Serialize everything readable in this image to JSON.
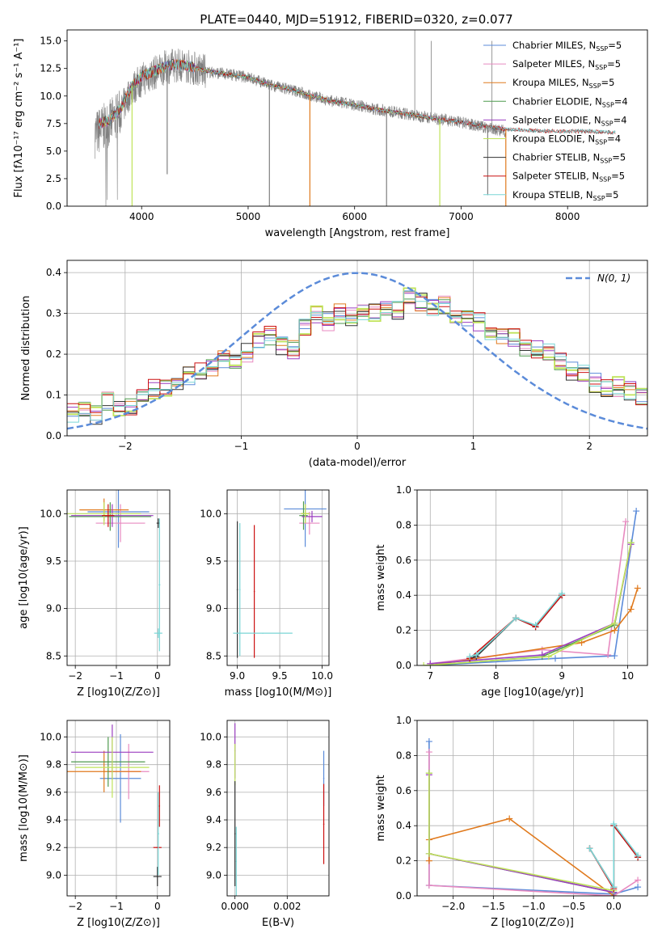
{
  "figure_title": "PLATE=0440, MJD=51912, FIBERID=0320, z=0.077",
  "colors": {
    "Chabrier MILES": "#5b8bd9",
    "Salpeter MILES": "#e88ac0",
    "Kroupa MILES": "#e07a1e",
    "Chabrier ELODIE": "#4f9a4f",
    "Salpeter ELODIE": "#9b3fc0",
    "Kroupa ELODIE": "#bfe35a",
    "Chabrier STELIB": "#333333",
    "Salpeter STELIB": "#cc1010",
    "Kroupa STELIB": "#7ad6d6",
    "data": "#808080",
    "normal": "#5b8bd9"
  },
  "chart_data": [
    {
      "id": "spectrum",
      "type": "line",
      "xlabel": "wavelength [Angstrom, rest frame]",
      "ylabel": "Flux [fλ10⁻¹⁷ erg cm⁻² s⁻¹ A⁻¹]",
      "xlim": [
        3300,
        8750
      ],
      "ylim": [
        0,
        16
      ],
      "xticks": [
        4000,
        5000,
        6000,
        7000,
        8000
      ],
      "yticks": [
        0.0,
        2.5,
        5.0,
        7.5,
        10.0,
        12.5,
        15.0
      ],
      "grid": false,
      "legend_position": "top-right",
      "legend": [
        {
          "name": "Chabrier MILES",
          "label": "Chabrier MILES, N",
          "sub": "SSP",
          "tail": "=5"
        },
        {
          "name": "Salpeter MILES",
          "label": "Salpeter MILES, N",
          "sub": "SSP",
          "tail": "=5"
        },
        {
          "name": "Kroupa MILES",
          "label": "Kroupa MILES, N",
          "sub": "SSP",
          "tail": "=5"
        },
        {
          "name": "Chabrier ELODIE",
          "label": "Chabrier ELODIE, N",
          "sub": "SSP",
          "tail": "=4"
        },
        {
          "name": "Salpeter ELODIE",
          "label": "Salpeter ELODIE, N",
          "sub": "SSP",
          "tail": "=4"
        },
        {
          "name": "Kroupa ELODIE",
          "label": "Kroupa ELODIE, N",
          "sub": "SSP",
          "tail": "=4"
        },
        {
          "name": "Chabrier STELIB",
          "label": "Chabrier STELIB, N",
          "sub": "SSP",
          "tail": "=5"
        },
        {
          "name": "Salpeter STELIB",
          "label": "Salpeter STELIB, N",
          "sub": "SSP",
          "tail": "=5"
        },
        {
          "name": "Kroupa STELIB",
          "label": "Kroupa STELIB, N",
          "sub": "SSP",
          "tail": "=5"
        }
      ],
      "data_envelope": {
        "x": [
          3560,
          3620,
          3700,
          3800,
          3900,
          4000,
          4100,
          4200,
          4300,
          4400,
          4500,
          4600,
          4800,
          5000,
          5200,
          5400,
          5600,
          5800,
          6000,
          6200,
          6400,
          6600,
          6800,
          7000,
          7200,
          7420
        ],
        "y": [
          6.5,
          7.0,
          7.5,
          8.5,
          10.5,
          11.5,
          12.0,
          12.5,
          12.8,
          12.8,
          12.5,
          12.2,
          12.0,
          11.7,
          11.0,
          10.6,
          10.0,
          9.5,
          9.2,
          8.8,
          8.5,
          8.2,
          7.9,
          7.6,
          7.2,
          6.8
        ]
      },
      "model_envelope": {
        "x": [
          3600,
          3700,
          3800,
          3900,
          4000,
          4100,
          4200,
          4300,
          4400,
          4600,
          4800,
          5000,
          5200,
          5400,
          5600,
          5800,
          6000,
          6200,
          6400,
          6600,
          6800,
          7000,
          7200,
          7400,
          7600,
          7800,
          8000,
          8200,
          8400
        ],
        "y": [
          7.5,
          7.8,
          8.8,
          10.8,
          11.8,
          12.2,
          12.6,
          12.9,
          12.8,
          12.3,
          12.0,
          11.7,
          11.0,
          10.6,
          10.0,
          9.5,
          9.2,
          8.8,
          8.5,
          8.2,
          7.9,
          7.6,
          7.3,
          7.0,
          6.9,
          6.8,
          6.8,
          6.8,
          6.7
        ]
      },
      "absorption_spikes": [
        {
          "x": 3910,
          "y": 0.0,
          "series": "Kroupa ELODIE"
        },
        {
          "x": 4240,
          "y": 2.9,
          "series": "data"
        },
        {
          "x": 5580,
          "y": 0.0,
          "series": "Kroupa MILES"
        },
        {
          "x": 5200,
          "y": 0.0,
          "series": "data"
        },
        {
          "x": 6300,
          "y": 0.0,
          "series": "data"
        },
        {
          "x": 6800,
          "y": 0.0,
          "series": "Kroupa ELODIE"
        },
        {
          "x": 7250,
          "y": 1.0,
          "series": "data"
        },
        {
          "x": 7420,
          "y": 0.0,
          "series": "Kroupa MILES"
        }
      ],
      "emission_spikes": [
        {
          "x": 6565,
          "y": 16.0
        },
        {
          "x": 6720,
          "y": 15.0
        },
        {
          "x": 7290,
          "y": 15.0
        }
      ]
    },
    {
      "id": "residuals",
      "type": "line",
      "xlabel": "(data-model)/error",
      "ylabel": "Normed distribution",
      "xlim": [
        -2.5,
        2.5
      ],
      "ylim": [
        0.0,
        0.43
      ],
      "xticks": [
        -2,
        -1,
        0,
        1,
        2
      ],
      "yticks": [
        0.0,
        0.1,
        0.2,
        0.3,
        0.4
      ],
      "grid": true,
      "legend_position": "top-right",
      "legend": [
        {
          "name": "normal",
          "label": "N(0, 1)"
        }
      ],
      "normal_curve": {
        "mean": 0,
        "sigma": 1
      },
      "histogram_base": {
        "edges_start": -2.5,
        "bin_width": 0.1,
        "values": [
          0.055,
          0.06,
          0.05,
          0.085,
          0.07,
          0.07,
          0.1,
          0.115,
          0.12,
          0.135,
          0.15,
          0.155,
          0.165,
          0.19,
          0.18,
          0.205,
          0.24,
          0.245,
          0.22,
          0.21,
          0.27,
          0.3,
          0.28,
          0.3,
          0.29,
          0.3,
          0.3,
          0.32,
          0.31,
          0.34,
          0.33,
          0.31,
          0.32,
          0.3,
          0.29,
          0.28,
          0.26,
          0.25,
          0.24,
          0.22,
          0.21,
          0.21,
          0.18,
          0.16,
          0.15,
          0.13,
          0.12,
          0.12,
          0.11,
          0.1,
          0.09,
          0.085,
          0.075,
          0.07,
          0.065
        ]
      }
    },
    {
      "id": "age-vs-Z",
      "type": "scatter",
      "xlabel": "Z [log10(Z/Z⊙)]",
      "ylabel": "age [log10(age/yr)]",
      "xlim": [
        -2.2,
        0.3
      ],
      "ylim": [
        8.4,
        10.25
      ],
      "xticks": [
        -2,
        -1,
        0
      ],
      "yticks": [
        8.5,
        9.0,
        9.5,
        10.0
      ],
      "grid": true,
      "points": [
        {
          "series": "Chabrier MILES",
          "x": -0.95,
          "y": 10.02,
          "xerr": 0.75,
          "yerr": 0.38
        },
        {
          "series": "Salpeter MILES",
          "x": -0.9,
          "y": 9.9,
          "xerr": 0.6,
          "yerr": 0.2
        },
        {
          "series": "Kroupa MILES",
          "x": -1.3,
          "y": 10.04,
          "xerr": 0.6,
          "yerr": 0.12
        },
        {
          "series": "Chabrier ELODIE",
          "x": -1.15,
          "y": 9.97,
          "xerr": 1.0,
          "yerr": 0.15
        },
        {
          "series": "Salpeter ELODIE",
          "x": -1.1,
          "y": 9.98,
          "xerr": 1.0,
          "yerr": 0.12
        },
        {
          "series": "Kroupa ELODIE",
          "x": -1.3,
          "y": 10.0,
          "xerr": 0.9,
          "yerr": 0.12
        },
        {
          "series": "Chabrier STELIB",
          "x": 0.02,
          "y": 9.9,
          "xerr": 0.04,
          "yerr": 0.05
        },
        {
          "series": "Salpeter STELIB",
          "x": -1.2,
          "y": 9.98,
          "xerr": 0.15,
          "yerr": 0.12
        },
        {
          "series": "Kroupa STELIB",
          "x": 0.02,
          "y": 8.74,
          "xerr": 0.1,
          "yerr": 0.05
        },
        {
          "series": "Kroupa STELIB",
          "x": 0.05,
          "y": 9.25,
          "xerr": 0.02,
          "yerr": 0.7
        }
      ]
    },
    {
      "id": "age-vs-mass",
      "type": "scatter",
      "xlabel": "mass [log10(M/M⊙)]",
      "ylabel": "",
      "xlim": [
        8.88,
        10.08
      ],
      "ylim": [
        8.4,
        10.25
      ],
      "xticks": [
        9.0,
        9.5,
        10.0
      ],
      "yticks": [
        8.5,
        9.0,
        9.5,
        10.0
      ],
      "grid": true,
      "points": [
        {
          "series": "Chabrier MILES",
          "x": 9.8,
          "y": 10.05,
          "xerr": 0.25,
          "yerr": 0.4
        },
        {
          "series": "Salpeter MILES",
          "x": 9.85,
          "y": 9.9,
          "xerr": 0.12,
          "yerr": 0.12
        },
        {
          "series": "Kroupa MILES",
          "x": 9.8,
          "y": 10.0,
          "xerr": 0.05,
          "yerr": 0.1
        },
        {
          "series": "Chabrier ELODIE",
          "x": 9.78,
          "y": 9.98,
          "xerr": 0.05,
          "yerr": 0.15
        },
        {
          "series": "Salpeter ELODIE",
          "x": 9.88,
          "y": 9.97,
          "xerr": 0.12,
          "yerr": 0.06
        },
        {
          "series": "Kroupa ELODIE",
          "x": 9.8,
          "y": 10.0,
          "xerr": 0.05,
          "yerr": 0.1
        },
        {
          "series": "Chabrier STELIB",
          "x": 9.0,
          "y": 9.2,
          "xerr": 0.0,
          "yerr": 0.72
        },
        {
          "series": "Salpeter STELIB",
          "x": 9.2,
          "y": 9.18,
          "xerr": 0.0,
          "yerr": 0.7
        },
        {
          "series": "Kroupa STELIB",
          "x": 9.03,
          "y": 9.2,
          "xerr": 0.0,
          "yerr": 0.7
        },
        {
          "series": "Kroupa STELIB",
          "x": 9.3,
          "y": 8.74,
          "xerr": 0.35,
          "yerr": 0.0
        }
      ]
    },
    {
      "id": "massweight-vs-age",
      "type": "line",
      "xlabel": "age [log10(age/yr)]",
      "ylabel": "mass weight",
      "xlim": [
        6.8,
        10.3
      ],
      "ylim": [
        0.0,
        1.0
      ],
      "xticks": [
        7,
        8,
        9,
        10
      ],
      "yticks": [
        0.0,
        0.2,
        0.4,
        0.6,
        0.8,
        1.0
      ],
      "grid": true,
      "series": [
        {
          "name": "Chabrier MILES",
          "x": [
            7.0,
            8.9,
            9.8,
            10.13
          ],
          "y": [
            0.0,
            0.04,
            0.055,
            0.88
          ]
        },
        {
          "name": "Salpeter MILES",
          "x": [
            7.0,
            8.7,
            9.7,
            9.97
          ],
          "y": [
            0.01,
            0.09,
            0.06,
            0.82
          ]
        },
        {
          "name": "Kroupa MILES",
          "x": [
            7.0,
            9.3,
            9.8,
            10.05,
            10.15
          ],
          "y": [
            0.0,
            0.13,
            0.2,
            0.32,
            0.44
          ]
        },
        {
          "name": "Chabrier ELODIE",
          "x": [
            7.0,
            8.7,
            9.8,
            10.05
          ],
          "y": [
            0.0,
            0.05,
            0.23,
            0.7
          ]
        },
        {
          "name": "Salpeter ELODIE",
          "x": [
            7.0,
            8.7,
            9.8,
            10.05
          ],
          "y": [
            0.01,
            0.06,
            0.24,
            0.69
          ]
        },
        {
          "name": "Kroupa ELODIE",
          "x": [
            6.9,
            8.8,
            9.8,
            10.05
          ],
          "y": [
            0.0,
            0.05,
            0.24,
            0.7
          ]
        },
        {
          "name": "Chabrier STELIB",
          "x": [
            7.6,
            7.7,
            8.3,
            8.6,
            9.0
          ],
          "y": [
            0.04,
            0.05,
            0.27,
            0.22,
            0.4
          ]
        },
        {
          "name": "Salpeter STELIB",
          "x": [
            7.6,
            8.3,
            8.6,
            9.0
          ],
          "y": [
            0.04,
            0.27,
            0.22,
            0.4
          ]
        },
        {
          "name": "Kroupa STELIB",
          "x": [
            7.6,
            7.7,
            8.3,
            8.6,
            9.0
          ],
          "y": [
            0.05,
            0.06,
            0.27,
            0.23,
            0.41
          ]
        }
      ]
    },
    {
      "id": "mass-vs-Z",
      "type": "scatter",
      "xlabel": "Z [log10(Z/Z⊙)]",
      "ylabel": "mass [log10(M/M⊙)]",
      "xlim": [
        -2.2,
        0.3
      ],
      "ylim": [
        8.85,
        10.12
      ],
      "xticks": [
        -2,
        -1,
        0
      ],
      "yticks": [
        9.0,
        9.2,
        9.4,
        9.6,
        9.8,
        10.0
      ],
      "grid": true,
      "points": [
        {
          "series": "Chabrier MILES",
          "x": -0.9,
          "y": 9.7,
          "xerr": 0.5,
          "yerr": 0.32
        },
        {
          "series": "Salpeter MILES",
          "x": -0.7,
          "y": 9.75,
          "xerr": 0.5,
          "yerr": 0.2
        },
        {
          "series": "Kroupa MILES",
          "x": -1.3,
          "y": 9.75,
          "xerr": 0.9,
          "yerr": 0.15
        },
        {
          "series": "Chabrier ELODIE",
          "x": -1.2,
          "y": 9.82,
          "xerr": 0.9,
          "yerr": 0.18
        },
        {
          "series": "Salpeter ELODIE",
          "x": -1.1,
          "y": 9.89,
          "xerr": 1.0,
          "yerr": 0.2
        },
        {
          "series": "Kroupa ELODIE",
          "x": -1.1,
          "y": 9.78,
          "xerr": 0.9,
          "yerr": 0.22
        },
        {
          "series": "Chabrier STELIB",
          "x": 0.0,
          "y": 8.99,
          "xerr": 0.1,
          "yerr": 0.07
        },
        {
          "series": "Salpeter STELIB",
          "x": 0.0,
          "y": 9.2,
          "xerr": 0.1,
          "yerr": 0.0
        },
        {
          "series": "Salpeter STELIB",
          "x": 0.05,
          "y": 9.5,
          "xerr": 0.0,
          "yerr": 0.15
        },
        {
          "series": "Kroupa STELIB",
          "x": 0.02,
          "y": 9.3,
          "xerr": 0.02,
          "yerr": 0.3
        }
      ]
    },
    {
      "id": "mass-vs-ebv",
      "type": "scatter",
      "xlabel": "E(B-V)",
      "ylabel": "",
      "xlim": [
        -0.0003,
        0.0036
      ],
      "ylim": [
        8.85,
        10.12
      ],
      "xticks": [
        0.0,
        0.002
      ],
      "yticks": [
        9.0,
        9.2,
        9.4,
        9.6,
        9.8,
        10.0
      ],
      "grid": true,
      "points": [
        {
          "series": "Chabrier MILES",
          "x": 0.0034,
          "y": 9.7,
          "xerr": 0.0,
          "yerr": 0.2
        },
        {
          "series": "Salpeter STELIB",
          "x": 0.0034,
          "y": 9.37,
          "xerr": 0.0,
          "yerr": 0.29
        },
        {
          "series": "Salpeter ELODIE",
          "x": 0.0,
          "y": 9.9,
          "xerr": 0.0,
          "yerr": 0.2
        },
        {
          "series": "Kroupa ELODIE",
          "x": 0.0,
          "y": 9.8,
          "xerr": 0.0,
          "yerr": 0.15
        },
        {
          "series": "Chabrier STELIB",
          "x": 0.0,
          "y": 9.3,
          "xerr": 0.0,
          "yerr": 0.38
        },
        {
          "series": "Kroupa STELIB",
          "x": 5e-05,
          "y": 9.1,
          "xerr": 0.0,
          "yerr": 0.25
        }
      ]
    },
    {
      "id": "massweight-vs-Z",
      "type": "line",
      "xlabel": "Z [log10(Z/Z⊙)]",
      "ylabel": "mass weight",
      "xlim": [
        -2.45,
        0.42
      ],
      "ylim": [
        0.0,
        1.0
      ],
      "xticks": [
        -2.0,
        -1.5,
        -1.0,
        -0.5,
        0.0
      ],
      "yticks": [
        0.0,
        0.2,
        0.4,
        0.6,
        0.8,
        1.0
      ],
      "grid": true,
      "series": [
        {
          "name": "Chabrier MILES",
          "x": [
            -2.3,
            -2.3,
            0.0,
            0.3
          ],
          "y": [
            0.88,
            0.06,
            0.01,
            0.05
          ]
        },
        {
          "name": "Salpeter MILES",
          "x": [
            -2.3,
            -2.3,
            0.0,
            0.3
          ],
          "y": [
            0.82,
            0.06,
            0.0,
            0.09
          ]
        },
        {
          "name": "Kroupa MILES",
          "x": [
            -2.3,
            -2.3,
            -1.3,
            0.0
          ],
          "y": [
            0.2,
            0.32,
            0.44,
            0.0
          ]
        },
        {
          "name": "Chabrier ELODIE",
          "x": [
            -2.3,
            -2.3,
            0.0
          ],
          "y": [
            0.7,
            0.24,
            0.02
          ]
        },
        {
          "name": "Salpeter ELODIE",
          "x": [
            -2.3,
            -2.3,
            0.0
          ],
          "y": [
            0.69,
            0.24,
            0.02
          ]
        },
        {
          "name": "Kroupa ELODIE",
          "x": [
            -2.3,
            -2.3,
            0.0
          ],
          "y": [
            0.7,
            0.24,
            0.03
          ]
        },
        {
          "name": "Chabrier STELIB",
          "x": [
            -0.3,
            0.0,
            0.0,
            0.3
          ],
          "y": [
            0.27,
            0.05,
            0.4,
            0.22
          ]
        },
        {
          "name": "Salpeter STELIB",
          "x": [
            -0.3,
            0.0,
            0.0,
            0.3
          ],
          "y": [
            0.27,
            0.04,
            0.4,
            0.22
          ]
        },
        {
          "name": "Kroupa STELIB",
          "x": [
            -0.3,
            0.0,
            0.0,
            0.3
          ],
          "y": [
            0.27,
            0.05,
            0.41,
            0.23
          ]
        }
      ]
    }
  ]
}
